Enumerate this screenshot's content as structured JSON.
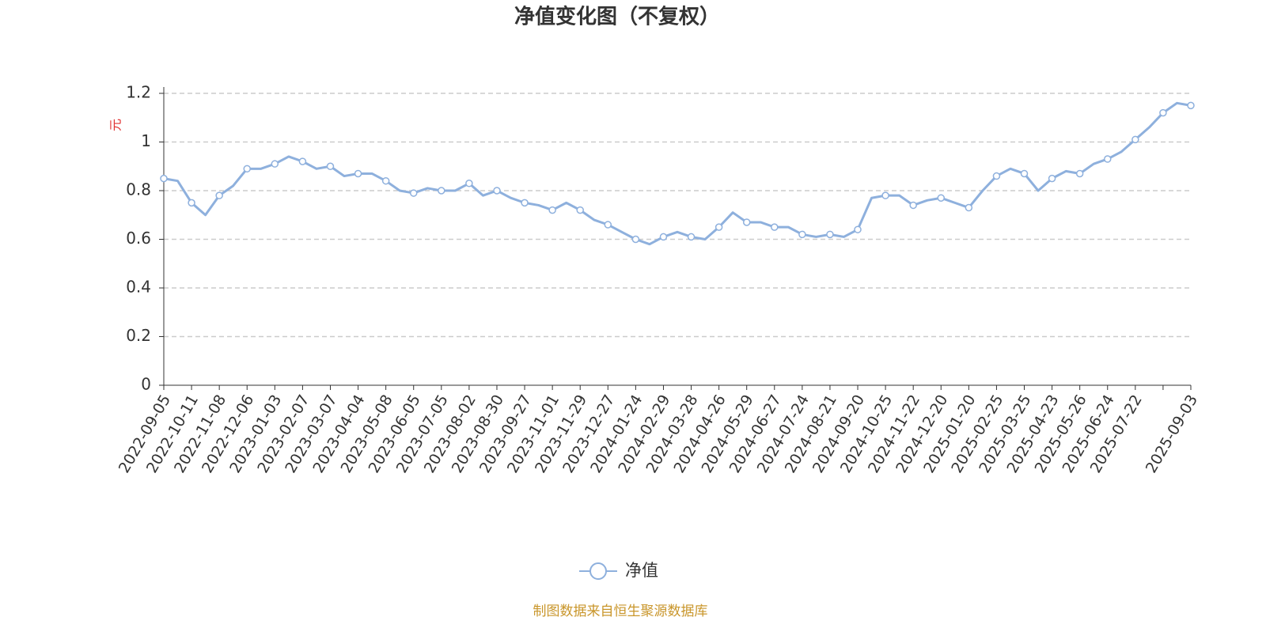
{
  "chart_data": {
    "type": "line",
    "title": "净值变化图（不复权）",
    "y_label": "元",
    "source": "制图数据来自恒生聚源数据库",
    "categories": [
      "2022-09-05",
      null,
      "2022-10-11",
      null,
      "2022-11-08",
      null,
      "2022-12-06",
      null,
      "2023-01-03",
      null,
      "2023-02-07",
      null,
      "2023-03-07",
      null,
      "2023-04-04",
      null,
      "2023-05-08",
      null,
      "2023-06-05",
      null,
      "2023-07-05",
      null,
      "2023-08-02",
      null,
      "2023-08-30",
      null,
      "2023-09-27",
      null,
      "2023-11-01",
      null,
      "2023-11-29",
      null,
      "2023-12-27",
      null,
      "2024-01-24",
      null,
      "2024-02-29",
      null,
      "2024-03-28",
      null,
      "2024-04-26",
      null,
      "2024-05-29",
      null,
      "2024-06-27",
      null,
      "2024-07-24",
      null,
      "2024-08-21",
      null,
      "2024-09-20",
      null,
      "2024-10-25",
      null,
      "2024-11-22",
      null,
      "2024-12-20",
      null,
      "2025-01-20",
      null,
      "2025-02-25",
      null,
      "2025-03-25",
      null,
      "2025-04-23",
      null,
      "2025-05-26",
      null,
      "2025-06-24",
      null,
      "2025-07-22",
      null,
      null,
      null,
      "2025-09-03"
    ],
    "series": [
      {
        "name": "净值",
        "color": "#8eb0dd",
        "values": [
          0.85,
          0.84,
          0.75,
          0.7,
          0.78,
          0.82,
          0.89,
          0.89,
          0.91,
          0.94,
          0.92,
          0.89,
          0.9,
          0.86,
          0.87,
          0.87,
          0.84,
          0.8,
          0.79,
          0.81,
          0.8,
          0.8,
          0.83,
          0.78,
          0.8,
          0.77,
          0.75,
          0.74,
          0.72,
          0.75,
          0.72,
          0.68,
          0.66,
          0.63,
          0.6,
          0.58,
          0.61,
          0.63,
          0.61,
          0.6,
          0.65,
          0.71,
          0.67,
          0.67,
          0.65,
          0.65,
          0.62,
          0.61,
          0.62,
          0.61,
          0.64,
          0.77,
          0.78,
          0.78,
          0.74,
          0.76,
          0.77,
          0.75,
          0.73,
          0.8,
          0.86,
          0.89,
          0.87,
          0.8,
          0.85,
          0.88,
          0.87,
          0.91,
          0.93,
          0.96,
          1.01,
          1.06,
          1.12,
          1.16,
          1.15
        ]
      }
    ],
    "ylim": [
      0,
      1.2
    ],
    "yticks": [
      0,
      0.2,
      0.4,
      0.6,
      0.8,
      1,
      1.2
    ],
    "grid": true
  }
}
